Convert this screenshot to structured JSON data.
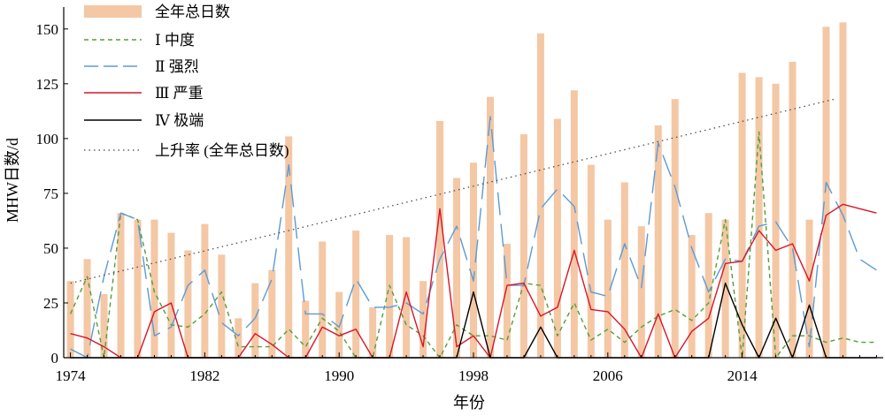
{
  "chart_data": {
    "type": "bar",
    "xlabel": "年份",
    "ylabel": "MHW日数/d",
    "xlim": [
      1973.6,
      2022.4
    ],
    "ylim": [
      0,
      160
    ],
    "xticks": [
      1974,
      1982,
      1990,
      1998,
      2006,
      2014
    ],
    "yticks": [
      0,
      25,
      50,
      75,
      100,
      125,
      150
    ],
    "x": [
      1974,
      1975,
      1976,
      1977,
      1978,
      1979,
      1980,
      1981,
      1982,
      1983,
      1984,
      1985,
      1986,
      1987,
      1988,
      1989,
      1990,
      1991,
      1992,
      1993,
      1994,
      1995,
      1996,
      1997,
      1998,
      1999,
      2000,
      2001,
      2002,
      2003,
      2004,
      2005,
      2006,
      2007,
      2008,
      2009,
      2010,
      2011,
      2012,
      2013,
      2014,
      2015,
      2016,
      2017,
      2018,
      2019,
      2020,
      2021,
      2022
    ],
    "series": [
      {
        "name": "全年总日数",
        "type": "bar",
        "color": "#f4c7a5",
        "values": [
          35,
          45,
          29,
          66,
          63,
          63,
          57,
          49,
          61,
          47,
          18,
          34,
          40,
          101,
          26,
          53,
          30,
          58,
          23,
          56,
          55,
          35,
          108,
          82,
          89,
          119,
          52,
          102,
          148,
          109,
          122,
          88,
          63,
          80,
          60,
          106,
          118,
          56,
          66,
          63,
          130,
          128,
          125,
          135,
          63,
          151,
          153,
          0,
          0
        ]
      },
      {
        "name": "Ⅰ 中度",
        "type": "line",
        "color": "#4fa03a",
        "dash": "5,4",
        "values": [
          20,
          37,
          0,
          66,
          63,
          30,
          15,
          14,
          20,
          30,
          5,
          5,
          5,
          13,
          5,
          18,
          12,
          0,
          0,
          33,
          15,
          10,
          0,
          15,
          10,
          10,
          8,
          34,
          33,
          10,
          25,
          8,
          13,
          7,
          14,
          19,
          22,
          17,
          25,
          63,
          0,
          103,
          0,
          10,
          10,
          7,
          9,
          7,
          7
        ]
      },
      {
        "name": "Ⅱ 强烈",
        "type": "line",
        "color": "#5b9bd5",
        "dash": "26,10",
        "values": [
          4,
          0,
          37,
          66,
          63,
          10,
          14,
          33,
          40,
          16,
          10,
          18,
          36,
          88,
          20,
          20,
          14,
          36,
          23,
          23,
          25,
          20,
          45,
          60,
          35,
          110,
          33,
          33,
          68,
          77,
          69,
          30,
          28,
          52,
          32,
          98,
          78,
          50,
          30,
          45,
          44,
          60,
          62,
          50,
          5,
          80,
          65,
          45,
          40
        ]
      },
      {
        "name": "Ⅲ 严重",
        "type": "line",
        "color": "#d6162a",
        "dash": "",
        "values": [
          11,
          9,
          5,
          0,
          0,
          21,
          25,
          0,
          0,
          0,
          0,
          11,
          6,
          0,
          0,
          14,
          10,
          13,
          0,
          0,
          30,
          5,
          68,
          5,
          10,
          0,
          33,
          34,
          19,
          23,
          49,
          22,
          21,
          13,
          0,
          20,
          0,
          12,
          18,
          43,
          44,
          58,
          49,
          52,
          35,
          65,
          70,
          68,
          66
        ]
      },
      {
        "name": "Ⅳ 极端",
        "type": "line",
        "color": "#000000",
        "dash": "",
        "values": [
          0,
          0,
          0,
          0,
          0,
          0,
          0,
          0,
          0,
          0,
          0,
          0,
          0,
          0,
          0,
          0,
          0,
          0,
          0,
          0,
          0,
          0,
          0,
          0,
          30,
          0,
          0,
          0,
          14,
          0,
          0,
          0,
          0,
          0,
          0,
          0,
          0,
          0,
          0,
          34,
          15,
          0,
          18,
          0,
          24,
          0,
          0,
          0,
          0
        ]
      },
      {
        "name": "上升率 (全年总日数)",
        "type": "trend",
        "color": "#444444",
        "dash": "1.5,4",
        "x": [
          1974,
          2019.5
        ],
        "values": [
          34,
          118
        ]
      }
    ],
    "legend_position": "top-left"
  }
}
